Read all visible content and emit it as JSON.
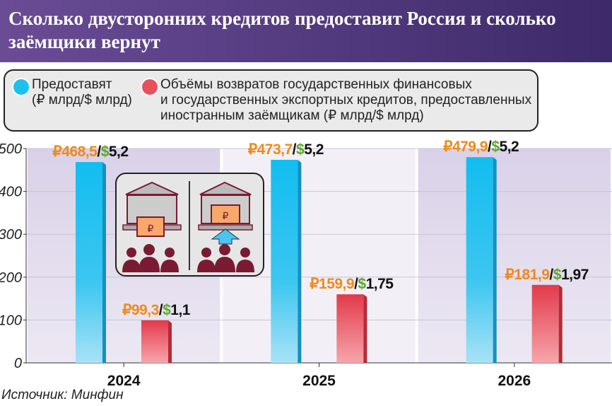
{
  "title": "Сколько двусторонних кредитов предоставит Россия и сколько заёмщики вернут",
  "legend": {
    "provide": "Предоставят\n(₽ млрд/$ млрд)",
    "return": "Объёмы возвратов государственных финансовых\nи государственных экспортных кредитов, предоставленных\nиностранным заёмщикам (₽ млрд/$ млрд)"
  },
  "source": "Источник: Минфин",
  "colors": {
    "provide": "#1ec0ee",
    "return": "#e8505b",
    "rub": "#ef8a1a",
    "usd": "#5ea52f"
  },
  "chart_data": {
    "type": "bar",
    "categories": [
      "2024",
      "2025",
      "2026"
    ],
    "ylim": [
      0,
      500
    ],
    "yticks": [
      0,
      100,
      200,
      300,
      400,
      500
    ],
    "series": [
      {
        "name": "Предоставят",
        "values": [
          468.5,
          473.7,
          479.9
        ],
        "labels_rub": [
          "₽468,5",
          "₽473,7",
          "₽479,9"
        ],
        "labels_usd": [
          "$5,2",
          "$5,2",
          "$5,2"
        ]
      },
      {
        "name": "Объёмы возвратов",
        "values": [
          99.3,
          159.9,
          181.9
        ],
        "labels_rub": [
          "₽99,3",
          "₽159,9",
          "₽181,9"
        ],
        "labels_usd": [
          "$1,1",
          "$1,75",
          "$1,97"
        ]
      }
    ]
  }
}
